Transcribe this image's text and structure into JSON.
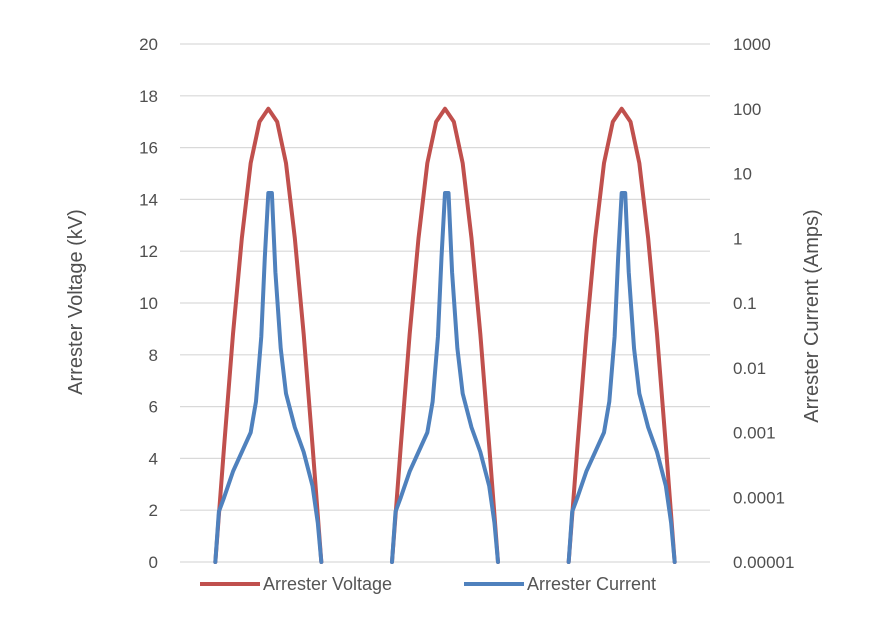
{
  "chart_data": {
    "type": "line",
    "xlabel": "",
    "ylabel": "Arrester Voltage (kV)",
    "y2label": "Arrester Current (Amps)",
    "ylim": [
      0,
      20
    ],
    "yticks": [
      "0",
      "2",
      "4",
      "6",
      "8",
      "10",
      "12",
      "14",
      "16",
      "18",
      "20"
    ],
    "y2scale": "log",
    "y2lim": [
      1e-05,
      1000
    ],
    "y2ticks": [
      "0.00001",
      "0.0001",
      "0.001",
      "0.01",
      "0.1",
      "1",
      "10",
      "100",
      "1000"
    ],
    "grid": "horizontal",
    "legend": "bottom",
    "series": [
      {
        "name": "Arrester Voltage",
        "axis": "left",
        "color": "#c0504d",
        "x": [
          0.2,
          0.25,
          0.3,
          0.35,
          0.4,
          0.45,
          0.5,
          0.55,
          0.6,
          0.65,
          0.7,
          0.75,
          0.8,
          1.2,
          1.25,
          1.3,
          1.35,
          1.4,
          1.45,
          1.5,
          1.55,
          1.6,
          1.65,
          1.7,
          1.75,
          1.8,
          2.2,
          2.25,
          2.3,
          2.35,
          2.4,
          2.45,
          2.5,
          2.55,
          2.6,
          2.65,
          2.7,
          2.75,
          2.8
        ],
        "y": [
          0,
          4.5,
          8.8,
          12.5,
          15.4,
          17.0,
          17.5,
          17.0,
          15.4,
          12.5,
          8.8,
          4.5,
          0,
          0,
          4.5,
          8.8,
          12.5,
          15.4,
          17.0,
          17.5,
          17.0,
          15.4,
          12.5,
          8.8,
          4.5,
          0,
          0,
          4.5,
          8.8,
          12.5,
          15.4,
          17.0,
          17.5,
          17.0,
          15.4,
          12.5,
          8.8,
          4.5,
          0
        ]
      },
      {
        "name": "Arrester Current",
        "axis": "right",
        "color": "#4f81bd",
        "x": [
          0.2,
          0.22,
          0.25,
          0.3,
          0.35,
          0.4,
          0.43,
          0.46,
          0.48,
          0.5,
          0.52,
          0.54,
          0.57,
          0.6,
          0.65,
          0.7,
          0.75,
          0.78,
          0.8,
          1.2,
          1.22,
          1.25,
          1.3,
          1.35,
          1.4,
          1.43,
          1.46,
          1.48,
          1.5,
          1.52,
          1.54,
          1.57,
          1.6,
          1.65,
          1.7,
          1.75,
          1.78,
          1.8,
          2.2,
          2.22,
          2.25,
          2.3,
          2.35,
          2.4,
          2.43,
          2.46,
          2.48,
          2.5,
          2.52,
          2.54,
          2.57,
          2.6,
          2.65,
          2.7,
          2.75,
          2.78,
          2.8
        ],
        "y": [
          1e-05,
          6e-05,
          0.0001,
          0.00025,
          0.0005,
          0.001,
          0.003,
          0.03,
          0.5,
          5,
          5,
          0.3,
          0.02,
          0.004,
          0.0012,
          0.0005,
          0.00015,
          4e-05,
          1e-05,
          1e-05,
          6e-05,
          0.0001,
          0.00025,
          0.0005,
          0.001,
          0.003,
          0.03,
          0.5,
          5,
          5,
          0.3,
          0.02,
          0.004,
          0.0012,
          0.0005,
          0.00015,
          4e-05,
          1e-05,
          1e-05,
          6e-05,
          0.0001,
          0.00025,
          0.0005,
          0.001,
          0.003,
          0.03,
          0.5,
          5,
          5,
          0.3,
          0.02,
          0.004,
          0.0012,
          0.0005,
          0.00015,
          4e-05,
          1e-05
        ]
      }
    ]
  }
}
